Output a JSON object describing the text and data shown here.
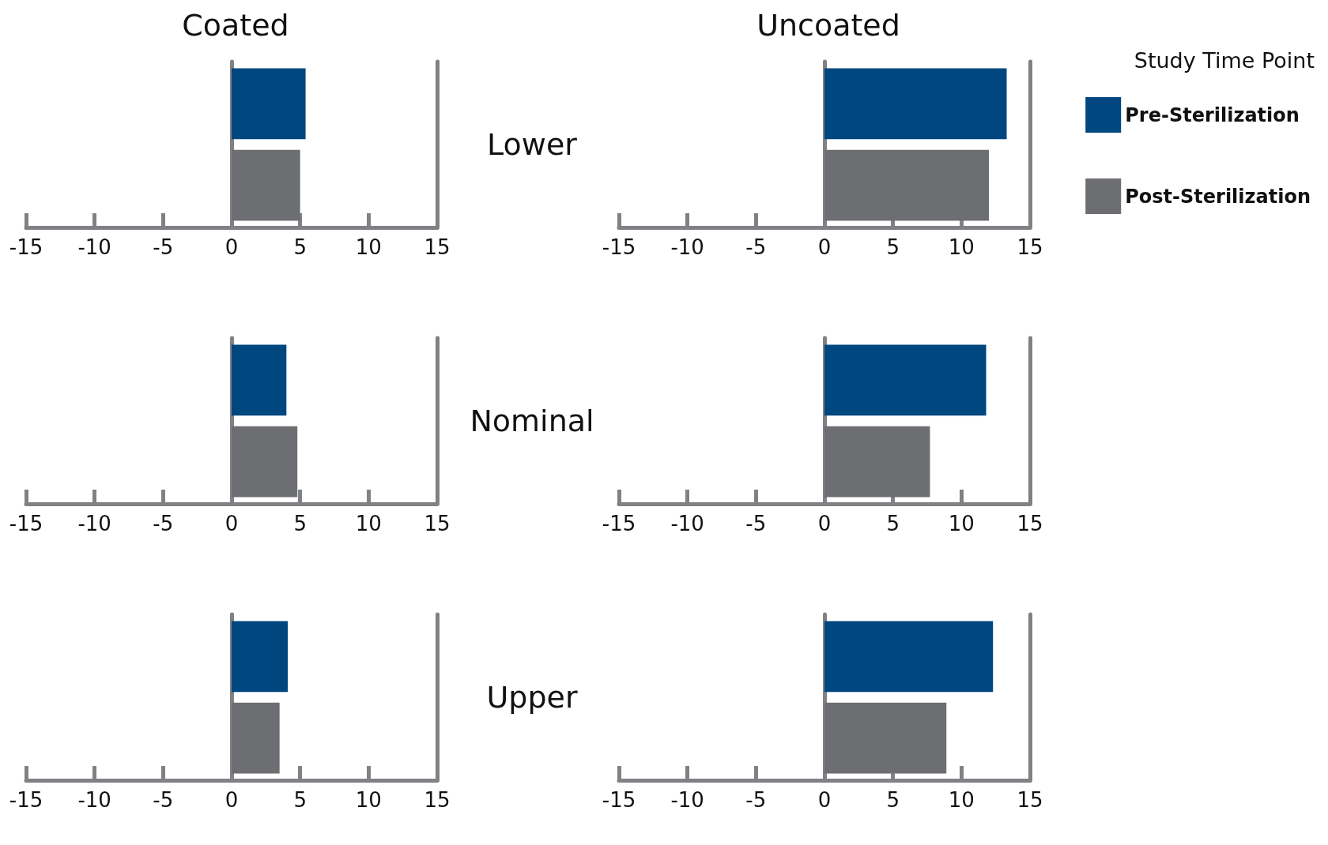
{
  "chart_data": [
    {
      "type": "bar",
      "orientation": "horizontal",
      "title": "Coated",
      "categories": [
        null
      ],
      "xlim": [
        -15,
        15
      ],
      "xticks": [
        -15,
        -10,
        -5,
        0,
        5,
        10,
        15
      ],
      "series": [
        {
          "color": "#00467f",
          "values": [
            5.4
          ]
        },
        {
          "color": "#6d6e71",
          "values": [
            5.0
          ]
        }
      ]
    },
    {
      "type": "bar",
      "orientation": "horizontal",
      "title": "Uncoated",
      "ylabel": "Lower",
      "categories": [
        null
      ],
      "xlim": [
        -15,
        15
      ],
      "xticks": [
        -15,
        -10,
        -5,
        0,
        5,
        10,
        15
      ],
      "legend": "right",
      "legend_title": "Study Time Point",
      "series": [
        {
          "name": "Pre-Sterilization",
          "color": "#00467f",
          "values": [
            13.3
          ]
        },
        {
          "name": "Post-Sterilization",
          "color": "#6d6e71",
          "values": [
            12.0
          ]
        }
      ]
    },
    {
      "type": "bar",
      "orientation": "horizontal",
      "categories": [
        null
      ],
      "xlim": [
        -15,
        15
      ],
      "xticks": [
        -15,
        -10,
        -5,
        0,
        5,
        10,
        15
      ],
      "series": [
        {
          "color": "#00467f",
          "values": [
            4.0
          ]
        },
        {
          "color": "#6d6e71",
          "values": [
            4.8
          ]
        }
      ]
    },
    {
      "type": "bar",
      "orientation": "horizontal",
      "ylabel": "Nominal",
      "categories": [
        null
      ],
      "xlim": [
        -15,
        15
      ],
      "xticks": [
        -15,
        -10,
        -5,
        0,
        5,
        10,
        15
      ],
      "series": [
        {
          "color": "#00467f",
          "values": [
            11.8
          ]
        },
        {
          "color": "#6d6e71",
          "values": [
            7.7
          ]
        }
      ]
    },
    {
      "type": "bar",
      "orientation": "horizontal",
      "categories": [
        null
      ],
      "xlim": [
        -15,
        15
      ],
      "xticks": [
        -15,
        -10,
        -5,
        0,
        5,
        10,
        15
      ],
      "series": [
        {
          "color": "#00467f",
          "values": [
            4.1
          ]
        },
        {
          "color": "#6d6e71",
          "values": [
            3.5
          ]
        }
      ]
    },
    {
      "type": "bar",
      "orientation": "horizontal",
      "ylabel": "Upper",
      "categories": [
        null
      ],
      "xlim": [
        -15,
        15
      ],
      "xticks": [
        -15,
        -10,
        -5,
        0,
        5,
        10,
        15
      ],
      "series": [
        {
          "color": "#00467f",
          "values": [
            12.3
          ]
        },
        {
          "color": "#6d6e71",
          "values": [
            8.9
          ]
        }
      ]
    }
  ]
}
